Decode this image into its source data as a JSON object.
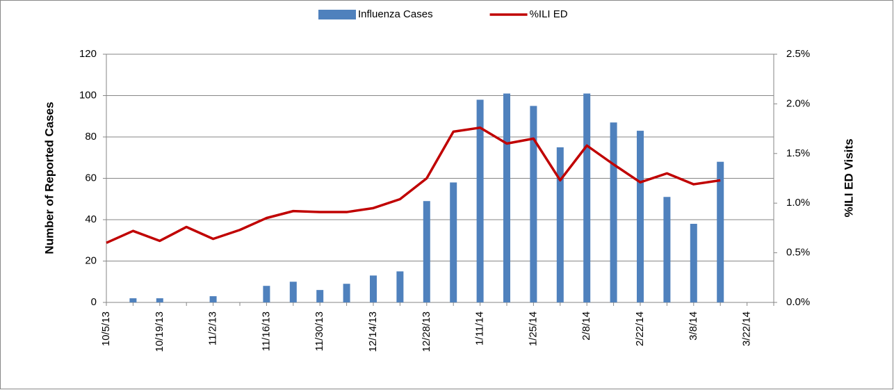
{
  "chart_data": {
    "type": "bar-line",
    "categories": [
      "10/5/13",
      null,
      "10/19/13",
      null,
      "11/2/13",
      null,
      "11/16/13",
      null,
      "11/30/13",
      null,
      "12/14/13",
      null,
      "12/28/13",
      null,
      "1/11/14",
      null,
      "1/25/14",
      null,
      "2/8/14",
      null,
      "2/22/14",
      null,
      "3/8/14",
      null,
      "3/22/14"
    ],
    "series": [
      {
        "name": "Influenza Cases",
        "type": "bar",
        "color": "#4f81bd",
        "values": [
          null,
          2,
          2,
          null,
          3,
          null,
          8,
          10,
          6,
          9,
          13,
          15,
          49,
          58,
          98,
          101,
          95,
          75,
          101,
          87,
          83,
          51,
          38,
          68,
          null
        ]
      },
      {
        "name": "%ILI ED",
        "type": "line",
        "axis": "y2",
        "color": "#c00000",
        "values": [
          0.6,
          0.72,
          0.62,
          0.76,
          0.64,
          0.73,
          0.85,
          0.92,
          0.91,
          0.91,
          0.95,
          1.04,
          1.25,
          1.72,
          1.76,
          1.6,
          1.65,
          1.23,
          1.58,
          1.39,
          1.21,
          1.3,
          1.19,
          1.23,
          null
        ]
      }
    ],
    "y_label": "Number of Reported Cases",
    "y2_label": "%ILI ED Visits",
    "ylim": [
      0,
      120
    ],
    "yticks": [
      0,
      20,
      40,
      60,
      80,
      100,
      120
    ],
    "y2lim": [
      0,
      2.5
    ],
    "y2ticks": [
      {
        "value": 0,
        "label": "0.0%"
      },
      {
        "value": 0.5,
        "label": "0.5%"
      },
      {
        "value": 1,
        "label": "1.0%"
      },
      {
        "value": 1.5,
        "label": "1.5%"
      },
      {
        "value": 2,
        "label": "2.0%"
      },
      {
        "value": 2.5,
        "label": "2.5%"
      }
    ],
    "grid": true,
    "legend": "top"
  }
}
